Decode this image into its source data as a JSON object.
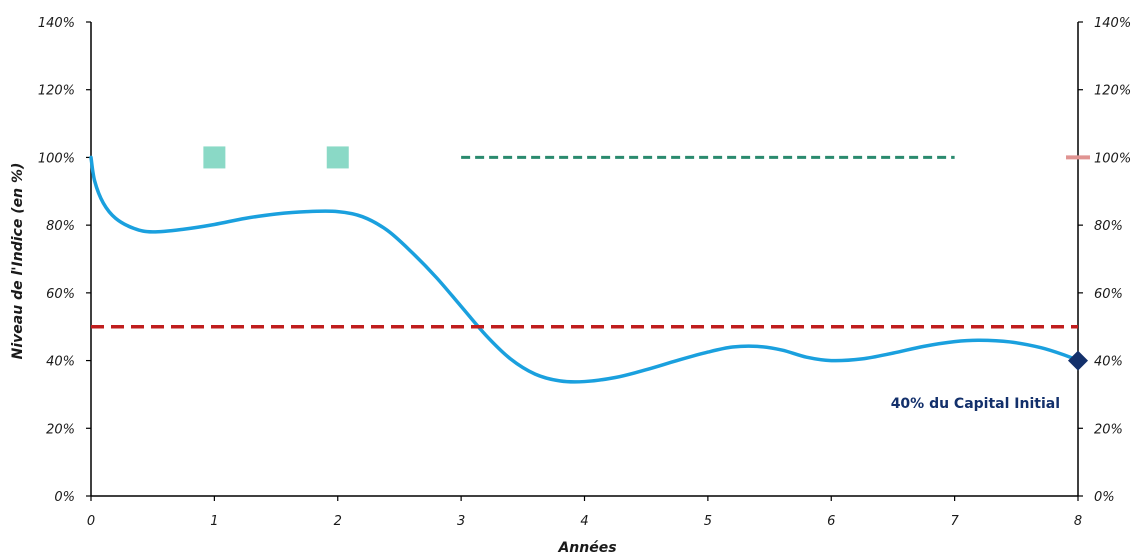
{
  "chart_data": {
    "type": "line",
    "xlabel": "Années",
    "ylabel": "Niveau de l'Indice (en %)",
    "xlim": [
      0,
      8
    ],
    "ylim": [
      0,
      140
    ],
    "x_ticks": [
      0,
      1,
      2,
      3,
      4,
      5,
      6,
      7,
      8
    ],
    "x_tick_labels": [
      "0",
      "1",
      "2",
      "3",
      "4",
      "5",
      "6",
      "7",
      "8"
    ],
    "y_ticks": [
      0,
      20,
      40,
      60,
      80,
      100,
      120,
      140
    ],
    "y_tick_labels": [
      "0%",
      "20%",
      "40%",
      "60%",
      "80%",
      "100%",
      "120%",
      "140%"
    ],
    "right_y_tick_labels": [
      "0%",
      "20%",
      "40%",
      "60%",
      "80%",
      "100%",
      "120%",
      "140%"
    ],
    "grid": false,
    "series": [
      {
        "kind": "curve",
        "color": "#1aa0de",
        "points": [
          [
            0,
            100
          ],
          [
            0.03,
            93
          ],
          [
            0.1,
            86.5
          ],
          [
            0.2,
            82
          ],
          [
            0.35,
            79
          ],
          [
            0.5,
            78
          ],
          [
            0.75,
            78.8
          ],
          [
            1,
            80.2
          ],
          [
            1.25,
            82
          ],
          [
            1.5,
            83.3
          ],
          [
            1.75,
            84
          ],
          [
            2,
            84
          ],
          [
            2.2,
            82.5
          ],
          [
            2.4,
            78.5
          ],
          [
            2.6,
            72
          ],
          [
            2.8,
            64.5
          ],
          [
            3,
            56
          ],
          [
            3.2,
            47.5
          ],
          [
            3.4,
            40.5
          ],
          [
            3.6,
            36
          ],
          [
            3.8,
            34
          ],
          [
            4,
            33.8
          ],
          [
            4.25,
            35
          ],
          [
            4.5,
            37.3
          ],
          [
            4.75,
            40
          ],
          [
            5,
            42.5
          ],
          [
            5.2,
            44
          ],
          [
            5.4,
            44.2
          ],
          [
            5.6,
            43.1
          ],
          [
            5.8,
            41
          ],
          [
            6,
            40
          ],
          [
            6.25,
            40.5
          ],
          [
            6.5,
            42.2
          ],
          [
            6.75,
            44.2
          ],
          [
            7,
            45.6
          ],
          [
            7.2,
            46
          ],
          [
            7.45,
            45.5
          ],
          [
            7.7,
            43.8
          ],
          [
            7.9,
            41.5
          ],
          [
            8,
            40
          ]
        ]
      },
      {
        "kind": "squares",
        "color": "#8ad9c6",
        "points": [
          [
            1,
            100
          ],
          [
            2,
            100
          ]
        ]
      },
      {
        "kind": "dashed",
        "color": "#2a8a6e",
        "x_range": [
          3,
          7
        ],
        "y": 100
      },
      {
        "kind": "dashed",
        "color": "#c01e1e",
        "x_range": [
          0,
          8
        ],
        "y": 50
      },
      {
        "kind": "tick-marker",
        "color": "#e09492",
        "x": 8,
        "y": 100
      },
      {
        "kind": "diamond",
        "color": "#13306b",
        "x": 8,
        "y": 40
      }
    ],
    "annotations": [
      {
        "text": "40% du Capital Initial",
        "x": 8,
        "y": 27.5,
        "anchor": "end"
      }
    ]
  }
}
